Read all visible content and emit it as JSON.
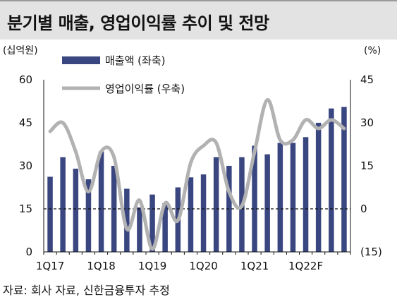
{
  "title": "분기별 매출, 영업이익률 추이 및 전망",
  "source": "자료: 회사 자료, 신한금융투자 추정",
  "colors": {
    "bar": "#3a4680",
    "line": "#b2b2b2",
    "zero_line": "#111111"
  },
  "chart_data": {
    "type": "bar+line",
    "left_unit": "(십억원)",
    "right_unit": "(%)",
    "legend_position": "top-left",
    "left_axis": {
      "min": 0,
      "max": 60,
      "ticks": [
        0,
        15,
        30,
        45,
        60
      ]
    },
    "right_axis": {
      "min": -15,
      "max": 45,
      "ticks": [
        45,
        30,
        15,
        0,
        -15
      ],
      "tick_labels": [
        "45",
        "30",
        "15",
        "0",
        "(15)"
      ]
    },
    "x_tick_labels": [
      {
        "label": "1Q17",
        "index": 0
      },
      {
        "label": "1Q18",
        "index": 4
      },
      {
        "label": "1Q19",
        "index": 8
      },
      {
        "label": "1Q20",
        "index": 12
      },
      {
        "label": "1Q21",
        "index": 16
      },
      {
        "label": "1Q22F",
        "index": 20
      }
    ],
    "series": [
      {
        "name": "매출액 (좌축)",
        "type": "bar",
        "axis": "left",
        "values": [
          26.2,
          33.0,
          29.0,
          25.3,
          35.0,
          30.0,
          22.0,
          15.5,
          20.0,
          17.0,
          22.5,
          26.0,
          27.0,
          33.0,
          30.0,
          33.0,
          37.0,
          34.0,
          38.0,
          38.0,
          40.0,
          45.0,
          50.0,
          50.5
        ]
      },
      {
        "name": "영업이익률 (우축)",
        "type": "line",
        "axis": "right",
        "values": [
          27,
          30,
          20,
          6,
          20,
          18,
          -7,
          3,
          -14,
          2,
          -4,
          16,
          22,
          23,
          6,
          1,
          20,
          38,
          24,
          24,
          31,
          28,
          31,
          28
        ]
      }
    ]
  }
}
